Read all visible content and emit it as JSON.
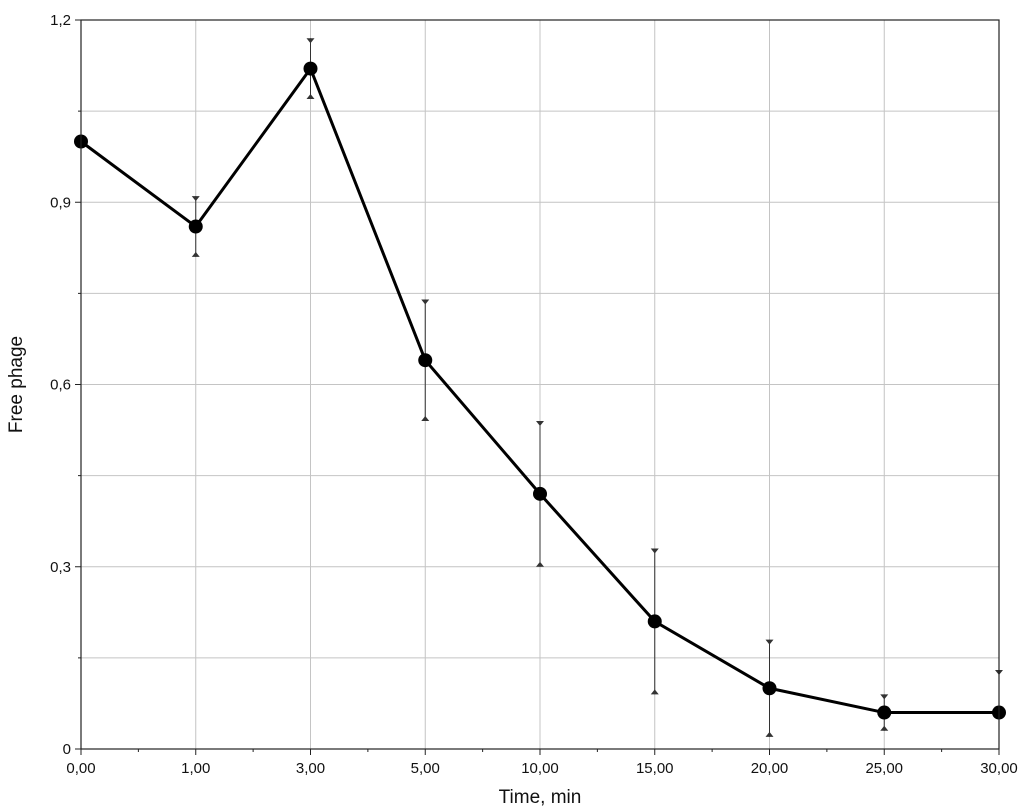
{
  "chart_data": {
    "type": "line",
    "title": "",
    "xlabel": "Time, min",
    "ylabel": "Free phage",
    "categories": [
      "0,00",
      "1,00",
      "3,00",
      "5,00",
      "10,00",
      "15,00",
      "20,00",
      "25,00",
      "30,00"
    ],
    "ylim": [
      0,
      1.2
    ],
    "yticks": [
      0,
      0.3,
      0.6,
      0.9,
      1.2
    ],
    "ytick_labels": [
      "0",
      "0,3",
      "0,6",
      "0,9",
      "1,2"
    ],
    "grid": true,
    "series": [
      {
        "values": [
          1.0,
          0.86,
          1.12,
          0.64,
          0.42,
          0.21,
          0.1,
          0.06,
          0.06
        ],
        "error_upper": [
          1.0,
          0.91,
          1.17,
          0.74,
          0.54,
          0.33,
          0.18,
          0.09,
          0.13
        ],
        "error_lower": [
          1.0,
          0.81,
          1.07,
          0.54,
          0.3,
          0.09,
          0.02,
          0.03,
          0.06
        ]
      }
    ],
    "colors": {
      "line": "#000000",
      "grid": "#c4c4c4"
    }
  }
}
